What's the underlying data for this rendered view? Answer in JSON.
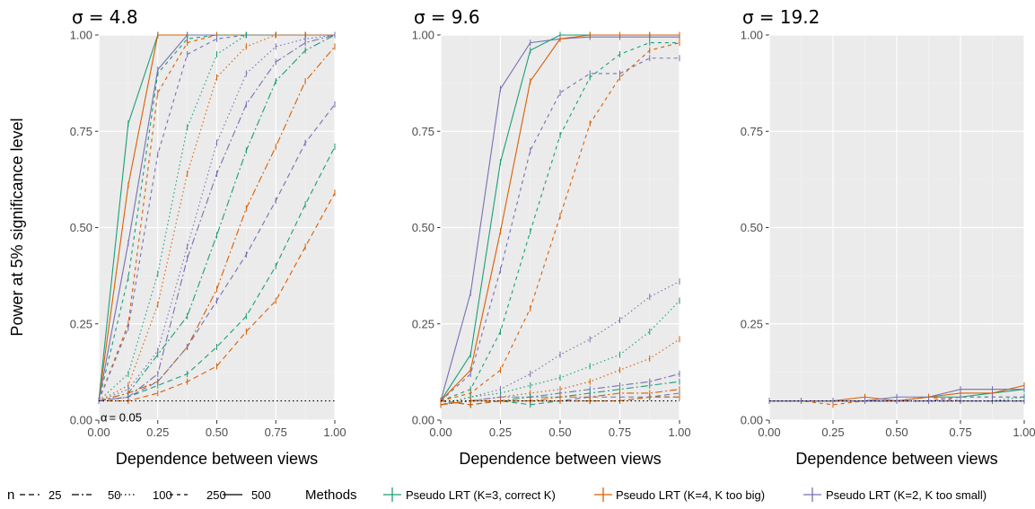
{
  "chart_data": {
    "type": "line",
    "ylabel": "Power at 5% significance level",
    "xlabel": "Dependence between views",
    "xlim": [
      0,
      1
    ],
    "ylim": [
      0,
      1
    ],
    "x_ticks": [
      "0.00",
      "0.25",
      "0.50",
      "0.75",
      "1.00"
    ],
    "y_ticks": [
      "0.00",
      "0.25",
      "0.50",
      "0.75",
      "1.00"
    ],
    "grid": true,
    "x": [
      0,
      0.125,
      0.25,
      0.375,
      0.5,
      0.625,
      0.75,
      0.875,
      1
    ],
    "reference_line": {
      "value": 0.05,
      "label_symbol": "α",
      "label_rest": "= 0.05"
    },
    "panels": [
      {
        "title_symbol": "σ",
        "title_rest": "= 4.8",
        "series": [
          {
            "method": "m3",
            "n": "500",
            "values": [
              0.05,
              0.77,
              1.0,
              1.0,
              1.0,
              1.0,
              1.0,
              1.0,
              1.0
            ]
          },
          {
            "method": "m4",
            "n": "500",
            "values": [
              0.05,
              0.61,
              1.0,
              1.0,
              1.0,
              1.0,
              1.0,
              1.0,
              1.0
            ]
          },
          {
            "method": "m2",
            "n": "500",
            "values": [
              0.05,
              0.46,
              0.91,
              1.0,
              1.0,
              1.0,
              1.0,
              1.0,
              1.0
            ]
          },
          {
            "method": "m3",
            "n": "250",
            "values": [
              0.05,
              0.37,
              0.9,
              0.99,
              1.0,
              1.0,
              1.0,
              1.0,
              1.0
            ]
          },
          {
            "method": "m4",
            "n": "250",
            "values": [
              0.05,
              0.25,
              0.85,
              0.98,
              1.0,
              1.0,
              1.0,
              1.0,
              1.0
            ]
          },
          {
            "method": "m2",
            "n": "250",
            "values": [
              0.05,
              0.24,
              0.69,
              0.95,
              0.99,
              1.0,
              1.0,
              1.0,
              1.0
            ]
          },
          {
            "method": "m3",
            "n": "100",
            "values": [
              0.05,
              0.12,
              0.38,
              0.76,
              0.95,
              1.0,
              1.0,
              1.0,
              1.0
            ]
          },
          {
            "method": "m4",
            "n": "100",
            "values": [
              0.05,
              0.09,
              0.3,
              0.64,
              0.89,
              0.97,
              1.0,
              1.0,
              1.0
            ]
          },
          {
            "method": "m2",
            "n": "100",
            "values": [
              0.05,
              0.08,
              0.18,
              0.45,
              0.72,
              0.9,
              0.97,
              0.99,
              1.0
            ]
          },
          {
            "method": "m3",
            "n": "50",
            "values": [
              0.05,
              0.07,
              0.17,
              0.27,
              0.48,
              0.7,
              0.88,
              0.96,
              1.0
            ]
          },
          {
            "method": "m4",
            "n": "50",
            "values": [
              0.05,
              0.07,
              0.1,
              0.19,
              0.34,
              0.55,
              0.71,
              0.88,
              0.97
            ]
          },
          {
            "method": "m2",
            "n": "50",
            "values": [
              0.05,
              0.06,
              0.12,
              0.42,
              0.64,
              0.82,
              0.93,
              0.98,
              1.0
            ]
          },
          {
            "method": "m3",
            "n": "25",
            "values": [
              0.05,
              0.06,
              0.09,
              0.12,
              0.19,
              0.27,
              0.4,
              0.56,
              0.71
            ]
          },
          {
            "method": "m4",
            "n": "25",
            "values": [
              0.05,
              0.05,
              0.07,
              0.1,
              0.14,
              0.23,
              0.31,
              0.45,
              0.59
            ]
          },
          {
            "method": "m2",
            "n": "25",
            "values": [
              0.05,
              0.06,
              0.1,
              0.19,
              0.31,
              0.43,
              0.57,
              0.72,
              0.82
            ]
          }
        ]
      },
      {
        "title_symbol": "σ",
        "title_rest": "= 9.6",
        "series": [
          {
            "method": "m2",
            "n": "500",
            "values": [
              0.05,
              0.33,
              0.86,
              0.98,
              0.99,
              0.995,
              0.995,
              0.995,
              0.995
            ]
          },
          {
            "method": "m3",
            "n": "500",
            "values": [
              0.05,
              0.17,
              0.67,
              0.96,
              1.0,
              1.0,
              1.0,
              1.0,
              1.0
            ]
          },
          {
            "method": "m4",
            "n": "500",
            "values": [
              0.05,
              0.13,
              0.49,
              0.88,
              0.99,
              1.0,
              1.0,
              1.0,
              1.0
            ]
          },
          {
            "method": "m2",
            "n": "250",
            "values": [
              0.05,
              0.12,
              0.39,
              0.7,
              0.85,
              0.9,
              0.9,
              0.94,
              0.94
            ]
          },
          {
            "method": "m3",
            "n": "250",
            "values": [
              0.05,
              0.08,
              0.23,
              0.49,
              0.74,
              0.89,
              0.95,
              0.98,
              0.98
            ]
          },
          {
            "method": "m4",
            "n": "250",
            "values": [
              0.05,
              0.07,
              0.13,
              0.29,
              0.53,
              0.77,
              0.89,
              0.96,
              0.98
            ]
          },
          {
            "method": "m2",
            "n": "100",
            "values": [
              0.04,
              0.06,
              0.08,
              0.12,
              0.17,
              0.21,
              0.26,
              0.32,
              0.36
            ]
          },
          {
            "method": "m3",
            "n": "100",
            "values": [
              0.04,
              0.06,
              0.07,
              0.09,
              0.11,
              0.14,
              0.17,
              0.23,
              0.31
            ]
          },
          {
            "method": "m4",
            "n": "100",
            "values": [
              0.04,
              0.05,
              0.06,
              0.07,
              0.08,
              0.1,
              0.13,
              0.16,
              0.21
            ]
          },
          {
            "method": "m2",
            "n": "50",
            "values": [
              0.04,
              0.05,
              0.06,
              0.06,
              0.07,
              0.08,
              0.09,
              0.1,
              0.12
            ]
          },
          {
            "method": "m3",
            "n": "50",
            "values": [
              0.04,
              0.05,
              0.05,
              0.06,
              0.06,
              0.07,
              0.08,
              0.09,
              0.1
            ]
          },
          {
            "method": "m4",
            "n": "50",
            "values": [
              0.04,
              0.05,
              0.05,
              0.05,
              0.06,
              0.06,
              0.07,
              0.07,
              0.08
            ]
          },
          {
            "method": "m2",
            "n": "25",
            "values": [
              0.05,
              0.04,
              0.05,
              0.05,
              0.05,
              0.06,
              0.06,
              0.06,
              0.07
            ]
          },
          {
            "method": "m3",
            "n": "25",
            "values": [
              0.05,
              0.04,
              0.05,
              0.04,
              0.05,
              0.05,
              0.05,
              0.06,
              0.06
            ]
          },
          {
            "method": "m4",
            "n": "25",
            "values": [
              0.05,
              0.04,
              0.05,
              0.05,
              0.05,
              0.05,
              0.05,
              0.06,
              0.06
            ]
          }
        ]
      },
      {
        "title_symbol": "σ",
        "title_rest": "= 19.2",
        "series": [
          {
            "method": "m3",
            "n": "500",
            "values": [
              0.05,
              0.05,
              0.05,
              0.05,
              0.05,
              0.06,
              0.06,
              0.07,
              0.08
            ]
          },
          {
            "method": "m4",
            "n": "500",
            "values": [
              0.05,
              0.05,
              0.05,
              0.06,
              0.05,
              0.06,
              0.07,
              0.07,
              0.09
            ]
          },
          {
            "method": "m2",
            "n": "500",
            "values": [
              0.05,
              0.05,
              0.05,
              0.05,
              0.06,
              0.06,
              0.08,
              0.08,
              0.08
            ]
          },
          {
            "method": "m3",
            "n": "250",
            "values": [
              0.05,
              0.05,
              0.05,
              0.05,
              0.05,
              0.05,
              0.06,
              0.06,
              0.06
            ]
          },
          {
            "method": "m4",
            "n": "250",
            "values": [
              0.05,
              0.05,
              0.04,
              0.05,
              0.05,
              0.06,
              0.05,
              0.05,
              0.05
            ]
          },
          {
            "method": "m2",
            "n": "250",
            "values": [
              0.05,
              0.05,
              0.05,
              0.05,
              0.05,
              0.05,
              0.06,
              0.06,
              0.06
            ]
          },
          {
            "method": "m3",
            "n": "100",
            "values": [
              0.05,
              0.05,
              0.05,
              0.05,
              0.05,
              0.05,
              0.05,
              0.05,
              0.06
            ]
          },
          {
            "method": "m4",
            "n": "100",
            "values": [
              0.05,
              0.05,
              0.05,
              0.05,
              0.05,
              0.05,
              0.05,
              0.05,
              0.05
            ]
          },
          {
            "method": "m2",
            "n": "100",
            "values": [
              0.05,
              0.05,
              0.05,
              0.05,
              0.05,
              0.05,
              0.05,
              0.05,
              0.05
            ]
          },
          {
            "method": "m3",
            "n": "50",
            "values": [
              0.05,
              0.05,
              0.05,
              0.05,
              0.05,
              0.05,
              0.05,
              0.05,
              0.05
            ]
          },
          {
            "method": "m4",
            "n": "50",
            "values": [
              0.05,
              0.05,
              0.05,
              0.05,
              0.05,
              0.05,
              0.05,
              0.05,
              0.05
            ]
          },
          {
            "method": "m2",
            "n": "50",
            "values": [
              0.05,
              0.05,
              0.05,
              0.05,
              0.05,
              0.05,
              0.05,
              0.05,
              0.05
            ]
          },
          {
            "method": "m3",
            "n": "25",
            "values": [
              0.05,
              0.05,
              0.05,
              0.05,
              0.05,
              0.05,
              0.05,
              0.05,
              0.05
            ]
          },
          {
            "method": "m4",
            "n": "25",
            "values": [
              0.05,
              0.05,
              0.05,
              0.05,
              0.05,
              0.05,
              0.05,
              0.05,
              0.05
            ]
          },
          {
            "method": "m2",
            "n": "25",
            "values": [
              0.05,
              0.05,
              0.05,
              0.05,
              0.05,
              0.05,
              0.05,
              0.05,
              0.05
            ]
          }
        ]
      }
    ],
    "legend": {
      "n_title": "n",
      "n_items": [
        {
          "label": "25",
          "dash": "6,4"
        },
        {
          "label": "50",
          "dash": "8,3,2,3"
        },
        {
          "label": "100",
          "dash": "1.5,3"
        },
        {
          "label": "250",
          "dash": "4,4"
        },
        {
          "label": "500",
          "dash": ""
        }
      ],
      "methods_title": "Methods",
      "methods": [
        {
          "key": "m3",
          "label": "Pseudo LRT (K=3, correct K)",
          "color": "#1b9e77"
        },
        {
          "key": "m4",
          "label": "Pseudo LRT (K=4, K too big)",
          "color": "#d95f02"
        },
        {
          "key": "m2",
          "label": "Pseudo LRT (K=2, K too small)",
          "color": "#7570b3"
        }
      ]
    }
  }
}
